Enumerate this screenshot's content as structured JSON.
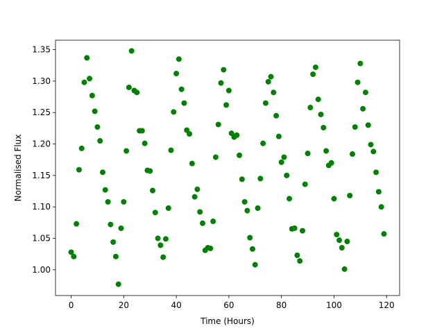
{
  "chart_data": {
    "type": "scatter",
    "x_label": "Time (Hours)",
    "y_label": "Normalised Flux",
    "color": "#008000",
    "x": [
      0,
      1,
      2,
      3,
      4,
      5,
      6,
      7,
      8,
      9,
      10,
      11,
      12,
      13,
      14,
      15,
      16,
      17,
      18,
      19,
      20,
      21,
      22,
      23,
      24,
      25,
      26,
      27,
      28,
      29,
      30,
      31,
      32,
      33,
      34,
      35,
      36,
      37,
      38,
      39,
      40,
      41,
      42,
      43,
      44,
      45,
      46,
      47,
      48,
      49,
      50,
      51,
      52,
      53,
      54,
      55,
      56,
      57,
      58,
      59,
      60,
      61,
      62,
      63,
      64,
      65,
      66,
      67,
      68,
      69,
      70,
      71,
      72,
      73,
      74,
      75,
      76,
      77,
      78,
      79,
      80,
      81,
      82,
      83,
      84,
      85,
      86,
      87,
      88,
      89,
      90,
      91,
      92,
      93,
      94,
      95,
      96,
      97,
      98,
      99,
      100,
      101,
      102,
      103,
      104,
      105,
      106,
      107,
      108,
      109,
      110,
      111,
      112,
      113,
      114,
      115,
      116,
      117,
      118,
      119
    ],
    "values": [
      1.028,
      1.021,
      1.073,
      1.159,
      1.193,
      1.298,
      1.337,
      1.304,
      1.277,
      1.252,
      1.227,
      1.205,
      1.155,
      1.127,
      1.108,
      1.072,
      1.044,
      1.021,
      0.977,
      1.066,
      1.108,
      1.189,
      1.29,
      1.348,
      1.285,
      1.282,
      1.221,
      1.221,
      1.201,
      1.158,
      1.157,
      1.126,
      1.091,
      1.05,
      1.039,
      1.02,
      1.049,
      1.098,
      1.19,
      1.251,
      1.312,
      1.335,
      1.287,
      1.265,
      1.222,
      1.216,
      1.169,
      1.116,
      1.128,
      1.092,
      1.074,
      1.031,
      1.035,
      1.034,
      1.077,
      1.179,
      1.231,
      1.297,
      1.318,
      1.262,
      1.285,
      1.217,
      1.211,
      1.214,
      1.182,
      1.144,
      1.108,
      1.094,
      1.051,
      1.033,
      1.008,
      1.098,
      1.145,
      1.201,
      1.265,
      1.299,
      1.307,
      1.282,
      1.245,
      1.212,
      1.171,
      1.179,
      1.15,
      1.113,
      1.065,
      1.066,
      1.023,
      1.014,
      1.062,
      1.136,
      1.185,
      1.258,
      1.311,
      1.322,
      1.271,
      1.247,
      1.226,
      1.189,
      1.166,
      1.17,
      1.113,
      1.056,
      1.047,
      1.035,
      1.001,
      1.045,
      1.118,
      1.184,
      1.227,
      1.298,
      1.328,
      1.256,
      1.282,
      1.23,
      1.199,
      1.188,
      1.155,
      1.124,
      1.1,
      1.057
    ],
    "xlim": [
      -5.95,
      124.95
    ],
    "ylim": [
      0.959,
      1.365
    ],
    "xticks": [
      0,
      20,
      40,
      60,
      80,
      100,
      120
    ],
    "yticks": [
      {
        "value": 1.0,
        "label": "1.00"
      },
      {
        "value": 1.05,
        "label": "1.05"
      },
      {
        "value": 1.1,
        "label": "1.10"
      },
      {
        "value": 1.15,
        "label": "1.15"
      },
      {
        "value": 1.2,
        "label": "1.20"
      },
      {
        "value": 1.25,
        "label": "1.25"
      },
      {
        "value": 1.3,
        "label": "1.30"
      },
      {
        "value": 1.35,
        "label": "1.35"
      }
    ]
  }
}
